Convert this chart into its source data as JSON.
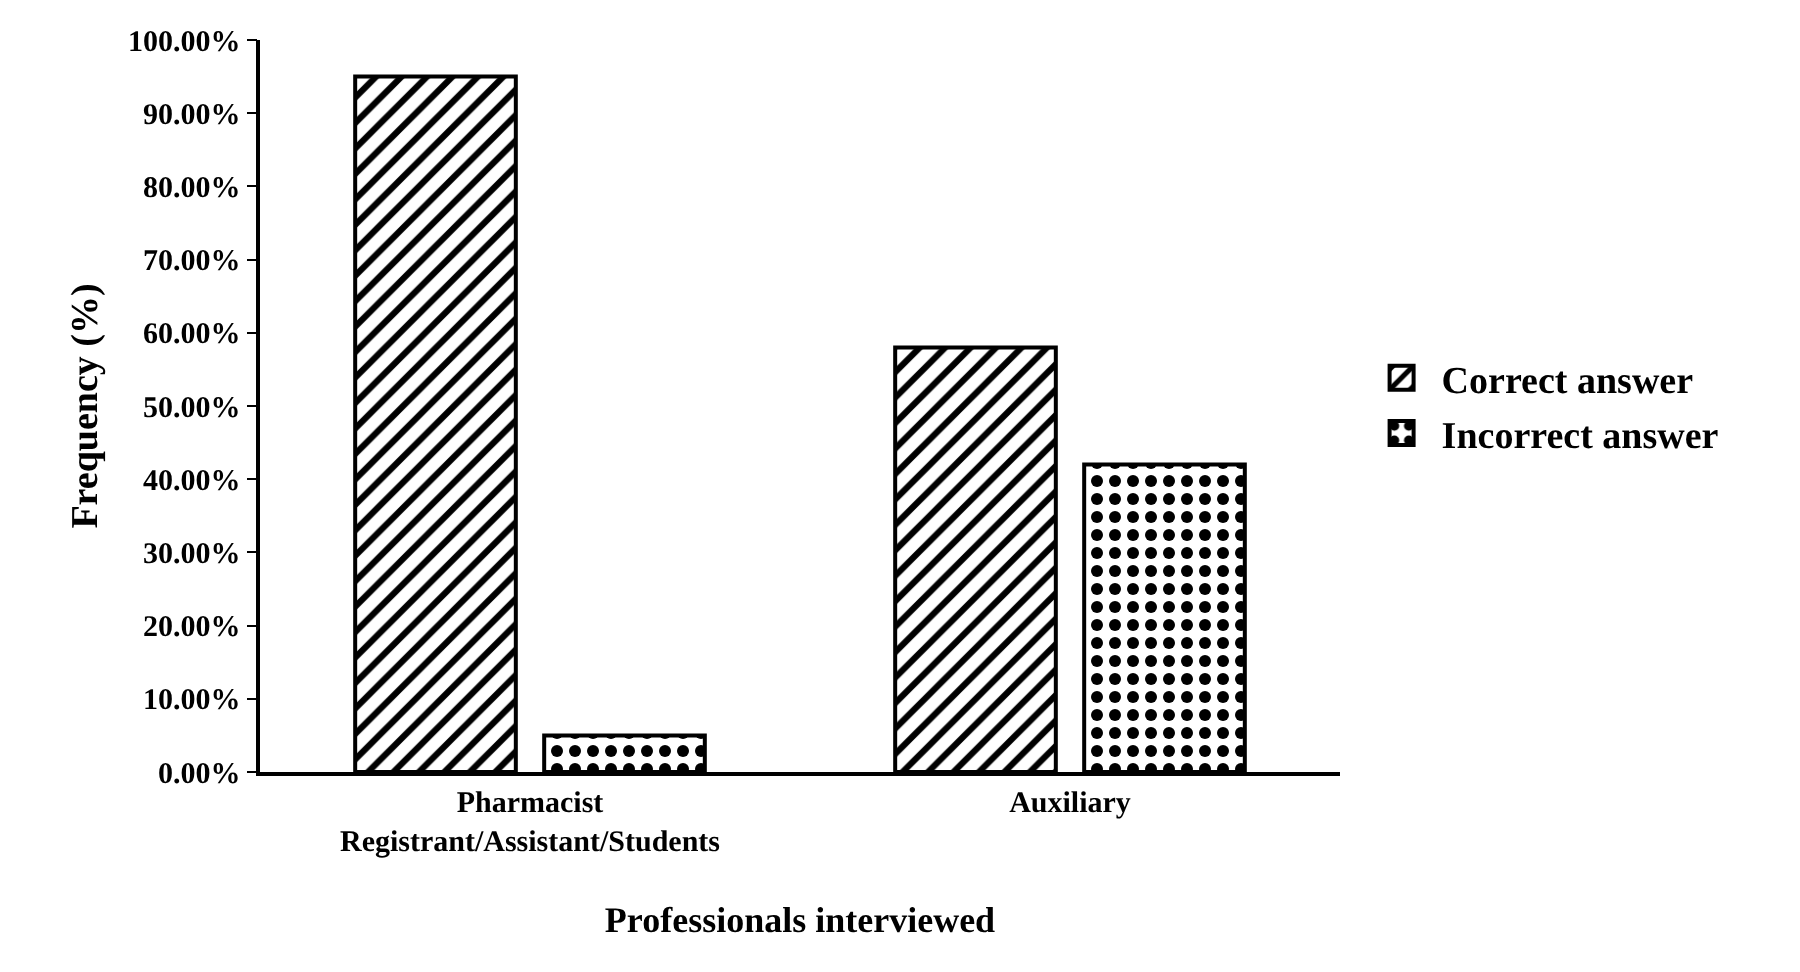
{
  "chart_data": {
    "type": "bar",
    "xlabel": "Professionals interviewed",
    "ylabel": "Frequency (%)",
    "categories": [
      "Pharmacist\nRegistrant/Assistant/Students",
      "Auxiliary"
    ],
    "series": [
      {
        "name": "Correct answer",
        "color": "#000000",
        "values": [
          95.0,
          58.0
        ]
      },
      {
        "name": "Incorrect answer",
        "color": "#000000",
        "values": [
          5.0,
          42.0
        ]
      }
    ],
    "ylim": [
      0,
      100
    ],
    "yticks": [
      {
        "value": 0,
        "label": "0.00%"
      },
      {
        "value": 10,
        "label": "10.00%"
      },
      {
        "value": 20,
        "label": "20.00%"
      },
      {
        "value": 30,
        "label": "30.00%"
      },
      {
        "value": 40,
        "label": "40.00%"
      },
      {
        "value": 50,
        "label": "50.00%"
      },
      {
        "value": 60,
        "label": "60.00%"
      },
      {
        "value": 70,
        "label": "70.00%"
      },
      {
        "value": 80,
        "label": "80.00%"
      },
      {
        "value": 90,
        "label": "90.00%"
      },
      {
        "value": 100,
        "label": "100.00%"
      }
    ],
    "grid": false,
    "legend": "right"
  }
}
